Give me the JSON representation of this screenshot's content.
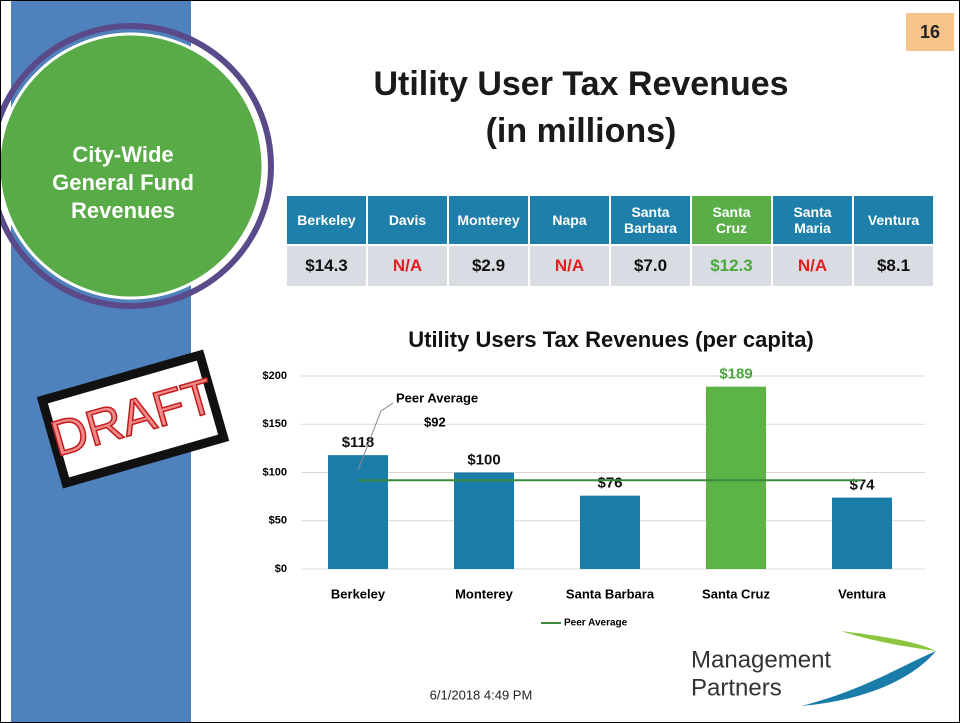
{
  "slide": {
    "number": "16",
    "section": [
      "City-Wide",
      "General Fund",
      "Revenues"
    ],
    "title": [
      "Utility User Tax Revenues",
      "(in millions)"
    ],
    "stamp": "DRAFT",
    "date": "6/1/2018 4:49 PM",
    "logo": [
      "Management",
      "Partners"
    ]
  },
  "table": {
    "header": [
      "Berkeley",
      "Davis",
      "Monterey",
      "Napa",
      "Santa Barbara",
      "Santa Cruz",
      "Santa Maria",
      "Ventura"
    ],
    "row": [
      "$14.3",
      "N/A",
      "$2.9",
      "N/A",
      "$7.0",
      "$12.3",
      "N/A",
      "$8.1"
    ],
    "header_colors": [
      "#1f7fab",
      "#1f7fab",
      "#1f7fab",
      "#1f7fab",
      "#1f7fab",
      "#5aae48",
      "#1f7fab",
      "#1f7fab"
    ],
    "value_colors": [
      "#111111",
      "#e02020",
      "#111111",
      "#e02020",
      "#111111",
      "#4aa83c",
      "#e02020",
      "#111111"
    ]
  },
  "chart_data": {
    "type": "bar",
    "title": "Utility Users Tax Revenues (per capita)",
    "categories": [
      "Berkeley",
      "Monterey",
      "Santa Barbara",
      "Santa Cruz",
      "Ventura"
    ],
    "values": [
      118,
      100,
      76,
      189,
      74
    ],
    "value_labels": [
      "$118",
      "$100",
      "$76",
      "$189",
      "$74"
    ],
    "colors": [
      "#1a7ca8",
      "#1a7ca8",
      "#1a7ca8",
      "#5cb346",
      "#1a7ca8"
    ],
    "label_colors": [
      "#111111",
      "#111111",
      "#111111",
      "#4aa83c",
      "#111111"
    ],
    "ylim": [
      0,
      200
    ],
    "yticks": [
      {
        "value": 0,
        "label": "$0"
      },
      {
        "value": 50,
        "label": "$50"
      },
      {
        "value": 100,
        "label": "$100"
      },
      {
        "value": 150,
        "label": "$150"
      },
      {
        "value": 200,
        "label": "$200"
      }
    ],
    "grid": true,
    "reference_line": {
      "name": "Peer Average",
      "value": 92,
      "label": "$92",
      "color": "#3b8a3b"
    },
    "legend": "bottom"
  }
}
